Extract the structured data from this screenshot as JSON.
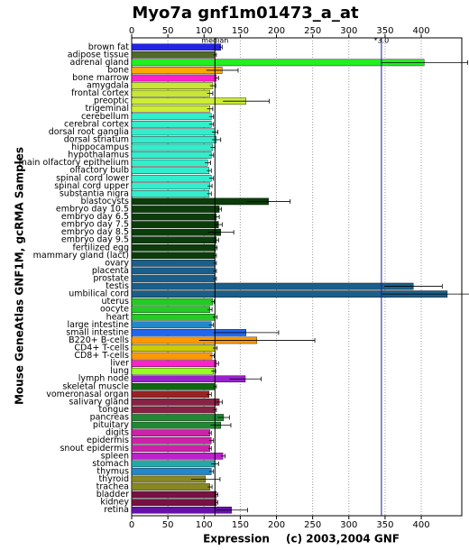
{
  "chart_data": {
    "type": "bar",
    "orientation": "horizontal",
    "title": "Myo7a gnf1m01473_a_at",
    "ylabel": "Mouse GeneAtlas GNF1M, gcRMA Samples",
    "xlabel": "Expression",
    "credit": "(c) 2003,2004 GNF",
    "categories": [
      "brown fat",
      "adipose tissue",
      "adrenal gland",
      "bone",
      "bone marrow",
      "amygdala",
      "frontal cortex",
      "preoptic",
      "trigeminal",
      "cerebellum",
      "cerebral cortex",
      "dorsal root ganglia",
      "dorsal striatum",
      "hippocampus",
      "hypothalamus",
      "main olfactory epithelium",
      "olfactory bulb",
      "spinal cord lower",
      "spinal cord upper",
      "substantia nigra",
      "blastocysts",
      "embryo day 10.5",
      "embryo day 6.5",
      "embryo day 7.5",
      "embryo day 8.5",
      "embryo day 9.5",
      "fertilized egg",
      "mammary gland (lact)",
      "ovary",
      "placenta",
      "prostate",
      "testis",
      "umbilical cord",
      "uterus",
      "oocyte",
      "heart",
      "large intestine",
      "small intestine",
      "B220+ B-cells",
      "CD4+ T-cells",
      "CD8+ T-cells",
      "liver",
      "lung",
      "lymph node",
      "skeletal muscle",
      "vomeronasal organ",
      "salivary gland",
      "tongue",
      "pancreas",
      "pituitary",
      "digits",
      "epidermis",
      "snout epidermis",
      "spleen",
      "stomach",
      "thymus",
      "thyroid",
      "trachea",
      "bladder",
      "kidney",
      "retina"
    ],
    "values": [
      123,
      115,
      404,
      125,
      117,
      112,
      108,
      158,
      108,
      110,
      110,
      115,
      117,
      112,
      110,
      105,
      107,
      110,
      108,
      107,
      189,
      121,
      117,
      120,
      123,
      117,
      116,
      115,
      115,
      115,
      115,
      389,
      436,
      112,
      108,
      115,
      110,
      158,
      173,
      115,
      111,
      117,
      113,
      157,
      115,
      107,
      121,
      115,
      127,
      123,
      108,
      110,
      108,
      126,
      115,
      110,
      102,
      108,
      117,
      117,
      138
    ],
    "errors": [
      2,
      2,
      60,
      22,
      3,
      4,
      4,
      32,
      4,
      3,
      3,
      4,
      6,
      3,
      3,
      4,
      3,
      3,
      3,
      3,
      30,
      3,
      4,
      5,
      18,
      3,
      2,
      2,
      2,
      2,
      2,
      40,
      90,
      2,
      3,
      3,
      3,
      45,
      80,
      3,
      3,
      3,
      3,
      22,
      2,
      3,
      4,
      2,
      8,
      14,
      2,
      3,
      2,
      3,
      5,
      3,
      20,
      3,
      2,
      2,
      22
    ],
    "colors": [
      "#2323e6",
      "#4f6a2a",
      "#22ee22",
      "#ffaa00",
      "#ff22cc",
      "#c8e632",
      "#c8e632",
      "#ccee33",
      "#ccee33",
      "#33eecc",
      "#33eecc",
      "#33eecc",
      "#33eecc",
      "#33eecc",
      "#33eecc",
      "#33eecc",
      "#33eecc",
      "#33eecc",
      "#33eecc",
      "#33eecc",
      "#0a3d0a",
      "#0a3d0a",
      "#0a3d0a",
      "#0a3d0a",
      "#0a3d0a",
      "#0a3d0a",
      "#0a3d0a",
      "#0a3d0a",
      "#1a5f8a",
      "#1a5f8a",
      "#1a5f8a",
      "#1a5f8a",
      "#1a5f8a",
      "#22cc22",
      "#22cc22",
      "#22cc22",
      "#2288cc",
      "#2266ee",
      "#ff9900",
      "#cccc00",
      "#ff9900",
      "#ff22cc",
      "#99ff22",
      "#9922cc",
      "#116611",
      "#992222",
      "#882244",
      "#882244",
      "#228833",
      "#228833",
      "#cc22aa",
      "#cc22aa",
      "#cc22aa",
      "#bb22cc",
      "#22aaaa",
      "#2288cc",
      "#888822",
      "#888822",
      "#771144",
      "#771144",
      "#6611aa"
    ],
    "xlim": [
      0,
      456
    ],
    "xticks": [
      0,
      50,
      100,
      150,
      200,
      250,
      300,
      350,
      400
    ],
    "grid": true,
    "annotations": [
      {
        "label": "median",
        "value": 115,
        "color": "#000000"
      },
      {
        "label": "*3.0",
        "value": 345,
        "color": "#1a1aa0"
      }
    ]
  }
}
